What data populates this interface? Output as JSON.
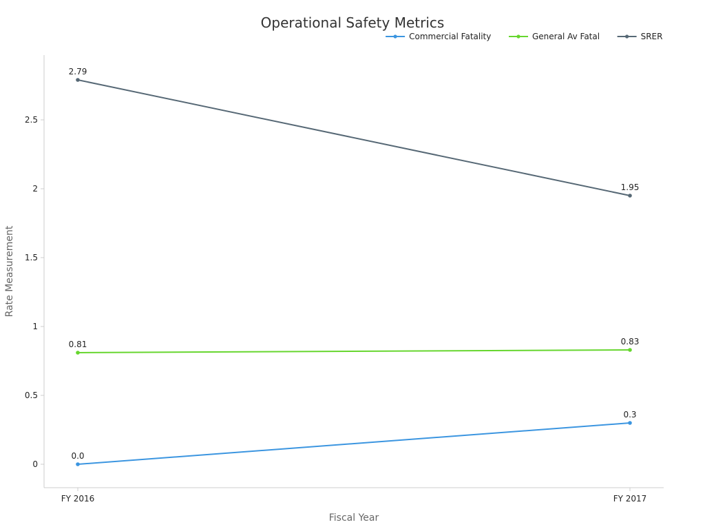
{
  "chart_data": {
    "type": "line",
    "title": "Operational Safety Metrics",
    "xlabel": "Fiscal Year",
    "ylabel": "Rate Measurement",
    "categories": [
      "FY 2016",
      "FY 2017"
    ],
    "ylim": [
      -0.17,
      2.97
    ],
    "yticks": [
      0,
      0.5,
      1,
      1.5,
      2,
      2.5
    ],
    "ytick_labels": [
      "0",
      "0.5",
      "1",
      "1.5",
      "2",
      "2.5"
    ],
    "grid": false,
    "legend_position": "top-right",
    "series": [
      {
        "name": "Commercial Fatality",
        "color": "#3b95e0",
        "values": [
          0.0,
          0.3
        ],
        "labels": [
          "0.0",
          "0.3"
        ]
      },
      {
        "name": "General Av Fatal",
        "color": "#66d62e",
        "values": [
          0.81,
          0.83
        ],
        "labels": [
          "0.81",
          "0.83"
        ]
      },
      {
        "name": "SRER",
        "color": "#566875",
        "values": [
          2.79,
          1.95
        ],
        "labels": [
          "2.79",
          "1.95"
        ]
      }
    ]
  }
}
